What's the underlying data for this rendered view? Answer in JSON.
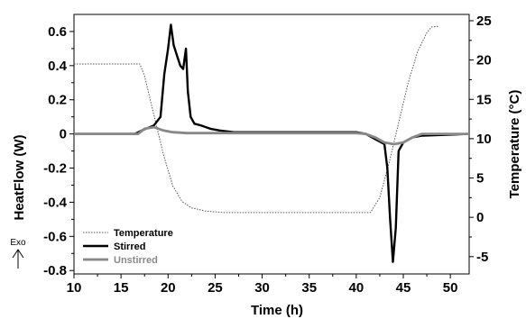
{
  "chart_data": {
    "type": "line",
    "xlabel": "Time (h)",
    "ylabel": "HeatFlow (W)",
    "y2label": "Temperature (°C)",
    "annotation": "Exo",
    "xlim": [
      10,
      52
    ],
    "ylim": [
      -0.82,
      0.7
    ],
    "y2lim": [
      -7.2,
      25.8
    ],
    "xticks": [
      10,
      15,
      20,
      25,
      30,
      35,
      40,
      45,
      50
    ],
    "yticks": [
      -0.8,
      -0.6,
      -0.4,
      -0.2,
      0,
      0.2,
      0.4,
      0.6
    ],
    "y2ticks": [
      -5,
      0,
      5,
      10,
      15,
      20,
      25
    ],
    "grid": false,
    "legend_position": "bottom-left",
    "colors": {
      "temperature": "#555555",
      "stirred": "#000000",
      "unstirred": "#888888"
    },
    "series": [
      {
        "name": "Temperature",
        "axis": "right",
        "style": "dotted",
        "points": [
          [
            10,
            19.5
          ],
          [
            17,
            19.5
          ],
          [
            17.5,
            18
          ],
          [
            18.5,
            13
          ],
          [
            19.5,
            8
          ],
          [
            20.5,
            4
          ],
          [
            21.5,
            2
          ],
          [
            22.5,
            1.2
          ],
          [
            24,
            0.8
          ],
          [
            26,
            0.6
          ],
          [
            30,
            0.6
          ],
          [
            35,
            0.6
          ],
          [
            40,
            0.6
          ],
          [
            41.5,
            0.6
          ],
          [
            42.5,
            2.5
          ],
          [
            43.5,
            7
          ],
          [
            44.5,
            12
          ],
          [
            45.5,
            17
          ],
          [
            46.5,
            21
          ],
          [
            47.5,
            23.5
          ],
          [
            48,
            24.2
          ],
          [
            48.8,
            24.3
          ]
        ]
      },
      {
        "name": "Stirred",
        "axis": "left",
        "style": "solid",
        "points": [
          [
            10,
            0
          ],
          [
            16.5,
            0
          ],
          [
            17.2,
            0.02
          ],
          [
            18.5,
            0.05
          ],
          [
            19.2,
            0.1
          ],
          [
            19.6,
            0.35
          ],
          [
            20,
            0.5
          ],
          [
            20.3,
            0.64
          ],
          [
            20.6,
            0.52
          ],
          [
            21,
            0.45
          ],
          [
            21.3,
            0.4
          ],
          [
            21.6,
            0.38
          ],
          [
            21.9,
            0.5
          ],
          [
            22.1,
            0.25
          ],
          [
            22.4,
            0.1
          ],
          [
            22.8,
            0.06
          ],
          [
            23.5,
            0.05
          ],
          [
            24.5,
            0.03
          ],
          [
            25.5,
            0.02
          ],
          [
            27,
            0.01
          ],
          [
            30,
            0.01
          ],
          [
            35,
            0.01
          ],
          [
            40,
            0.01
          ],
          [
            41,
            0
          ],
          [
            42,
            -0.03
          ],
          [
            43,
            -0.06
          ],
          [
            43.3,
            -0.2
          ],
          [
            43.6,
            -0.5
          ],
          [
            43.9,
            -0.75
          ],
          [
            44.2,
            -0.55
          ],
          [
            44.5,
            -0.1
          ],
          [
            45,
            -0.05
          ],
          [
            46,
            -0.02
          ],
          [
            47,
            -0.01
          ],
          [
            52,
            0
          ]
        ]
      },
      {
        "name": "Unstirred",
        "axis": "left",
        "style": "solid",
        "points": [
          [
            10,
            0
          ],
          [
            16.8,
            0
          ],
          [
            17.5,
            0.03
          ],
          [
            18.5,
            0.04
          ],
          [
            19.5,
            0.02
          ],
          [
            20.5,
            0.01
          ],
          [
            22,
            0.005
          ],
          [
            30,
            0.005
          ],
          [
            40,
            0.005
          ],
          [
            41,
            0
          ],
          [
            42,
            -0.02
          ],
          [
            43,
            -0.05
          ],
          [
            44,
            -0.06
          ],
          [
            45,
            -0.05
          ],
          [
            46,
            -0.02
          ],
          [
            47,
            0
          ],
          [
            52,
            0
          ]
        ]
      }
    ]
  }
}
